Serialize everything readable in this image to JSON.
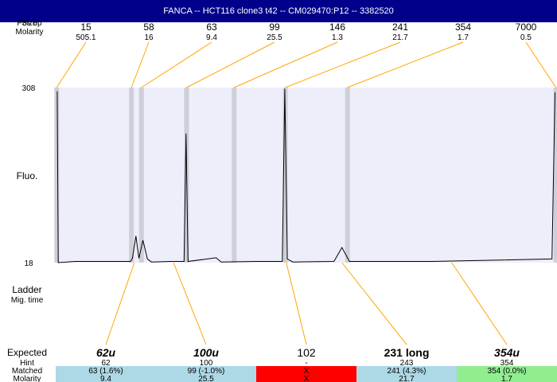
{
  "title": "FANCA -- HCT116 clone3 t42 -- CM029470:P12 -- 3382520",
  "header": {
    "size_label": "Size",
    "size_overlap_label": "Pos bp",
    "molarity_label": "Molarity"
  },
  "labels": {
    "fluo": "Fluo.",
    "ladder": "Ladder",
    "mig_time": "Mig. time",
    "expected": "Expected",
    "hint": "Hint",
    "matched": "Matched",
    "molarity": "Molarity"
  },
  "colors": {
    "titlebar": "#00008b",
    "plot_bg": "#eeeefb",
    "marker_band": "#cfcfd9",
    "connector": "#ffa500",
    "trace": "#000000",
    "match_ok": "#add8e6",
    "match_fail": "#ff0000",
    "match_exact": "#90ee90"
  },
  "chart_data": {
    "type": "line",
    "y_ticks": [
      "308",
      "18"
    ],
    "ylim": [
      18,
      308
    ],
    "ladder": [
      {
        "size": "15",
        "molarity": "505.1"
      },
      {
        "size": "58",
        "molarity": "16"
      },
      {
        "size": "63",
        "molarity": "9.4"
      },
      {
        "size": "99",
        "molarity": "25.5"
      },
      {
        "size": "146",
        "molarity": "1.3"
      },
      {
        "size": "241",
        "molarity": "21.7"
      },
      {
        "size": "354",
        "molarity": "1.7"
      },
      {
        "size": "7000",
        "molarity": "0.5"
      }
    ],
    "peaks": [
      {
        "position": 0.3,
        "height": 302
      },
      {
        "position": 0.5,
        "height": 18
      },
      {
        "position": 3.9,
        "height": 20
      },
      {
        "position": 14.9,
        "height": 20
      },
      {
        "position": 15.3,
        "height": 25
      },
      {
        "position": 16.0,
        "height": 62
      },
      {
        "position": 16.6,
        "height": 25
      },
      {
        "position": 17.4,
        "height": 55
      },
      {
        "position": 18.3,
        "height": 24
      },
      {
        "position": 19.1,
        "height": 19
      },
      {
        "position": 23.0,
        "height": 20
      },
      {
        "position": 25.6,
        "height": 20
      },
      {
        "position": 26.0,
        "height": 232
      },
      {
        "position": 26.4,
        "height": 20
      },
      {
        "position": 32.0,
        "height": 26
      },
      {
        "position": 33.0,
        "height": 19
      },
      {
        "position": 40.0,
        "height": 20
      },
      {
        "position": 45.2,
        "height": 20
      },
      {
        "position": 45.7,
        "height": 306
      },
      {
        "position": 46.2,
        "height": 24
      },
      {
        "position": 47.3,
        "height": 19
      },
      {
        "position": 55.5,
        "height": 20
      },
      {
        "position": 57.1,
        "height": 43
      },
      {
        "position": 58.6,
        "height": 20
      },
      {
        "position": 75.0,
        "height": 20
      },
      {
        "position": 99.0,
        "height": 24
      },
      {
        "position": 99.6,
        "height": 300
      }
    ],
    "marker_positions": [
      0.2,
      15.1,
      17.1,
      26.1,
      35.6,
      45.8,
      58.2,
      99.8
    ],
    "expected": [
      {
        "label": "62u",
        "style": "italic",
        "hint": "62",
        "matched": "63 (1.6%)",
        "molarity": "9.4",
        "status": "ok"
      },
      {
        "label": "100u",
        "style": "italic",
        "hint": "100",
        "matched": "99 (-1.0%)",
        "molarity": "25.5",
        "status": "ok"
      },
      {
        "label": "102",
        "style": "normal",
        "hint": "-",
        "matched": "X",
        "molarity": "X",
        "status": "fail"
      },
      {
        "label": "231 long",
        "style": "bold",
        "hint": "243",
        "matched": "241 (4.3%)",
        "molarity": "21.7",
        "status": "ok"
      },
      {
        "label": "354u",
        "style": "italic",
        "hint": "354",
        "matched": "354 (0.0%)",
        "molarity": "1.7",
        "status": "exact"
      }
    ],
    "expected_matches": [
      15.7,
      23.5,
      46.0,
      57.1,
      79.0
    ]
  }
}
